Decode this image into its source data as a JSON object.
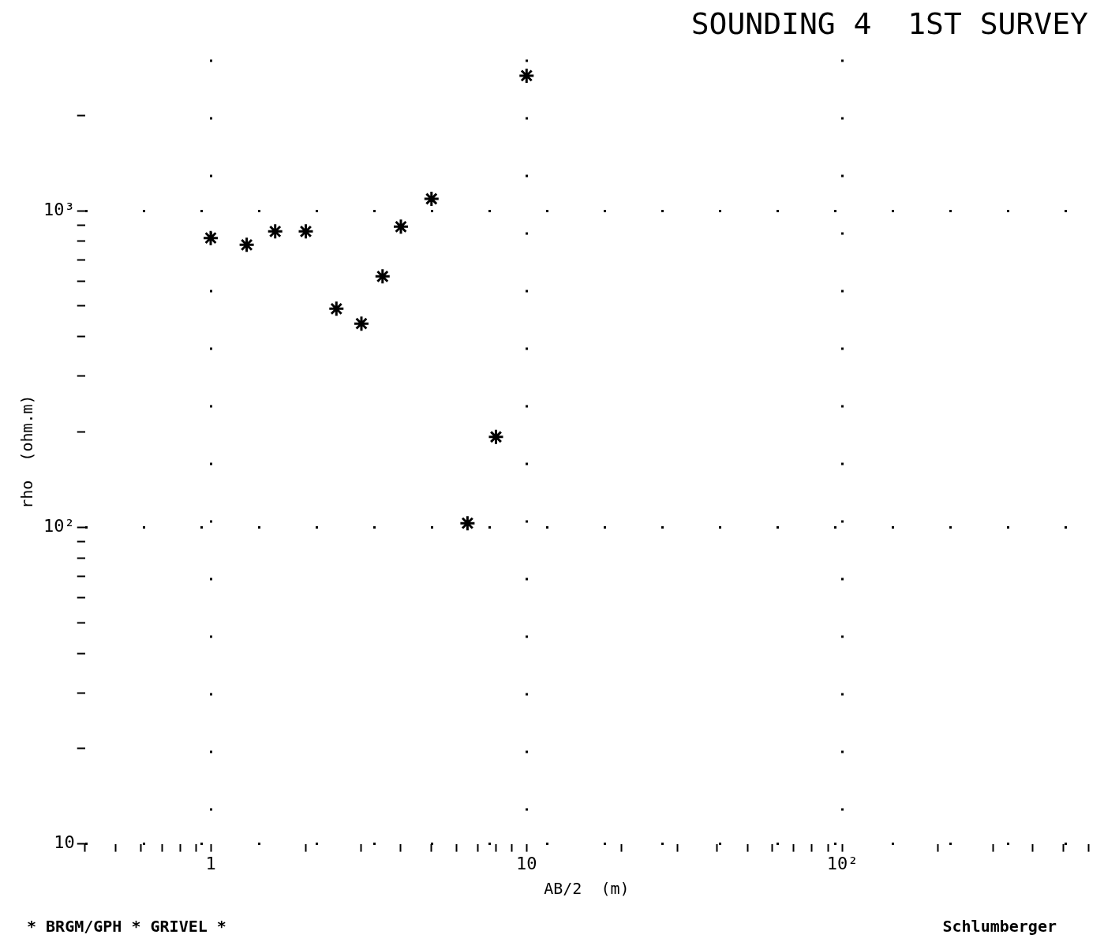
{
  "chart_data": {
    "type": "scatter",
    "title": "SOUNDING 4  1ST SURVEY",
    "xlabel": "AB/2  (m)",
    "ylabel": "rho  (ohm.m)",
    "annotations": [
      "* BRGM/GPH * GRIVEL *",
      "Schlumberger"
    ],
    "log": "xy",
    "grid": true,
    "marker": "cross",
    "legend": false,
    "xlim": [
      0.4,
      600
    ],
    "ylim": [
      10,
      3000
    ],
    "xticks": [
      {
        "value": 0.4,
        "label": null
      },
      {
        "value": 0.5,
        "label": null
      },
      {
        "value": 0.6,
        "label": null
      },
      {
        "value": 0.7,
        "label": null
      },
      {
        "value": 0.8,
        "label": null
      },
      {
        "value": 0.9,
        "label": null
      },
      1,
      {
        "value": 2,
        "label": null
      },
      {
        "value": 3,
        "label": null
      },
      {
        "value": 4,
        "label": null
      },
      {
        "value": 5,
        "label": null
      },
      {
        "value": 6,
        "label": null
      },
      {
        "value": 7,
        "label": null
      },
      {
        "value": 8,
        "label": null
      },
      {
        "value": 9,
        "label": null
      },
      10,
      {
        "value": 20,
        "label": null
      },
      {
        "value": 30,
        "label": null
      },
      {
        "value": 40,
        "label": null
      },
      {
        "value": 50,
        "label": null
      },
      {
        "value": 60,
        "label": null
      },
      {
        "value": 70,
        "label": null
      },
      {
        "value": 80,
        "label": null
      },
      {
        "value": 90,
        "label": null
      },
      {
        "value": 100,
        "label": "10²"
      },
      {
        "value": 200,
        "label": null
      },
      {
        "value": 300,
        "label": null
      },
      {
        "value": 400,
        "label": null
      },
      {
        "value": 500,
        "label": null
      },
      {
        "value": 600,
        "label": null
      }
    ],
    "yticks": [
      10,
      {
        "value": 20,
        "label": null
      },
      {
        "value": 30,
        "label": null
      },
      {
        "value": 40,
        "label": null
      },
      {
        "value": 50,
        "label": null
      },
      {
        "value": 60,
        "label": null
      },
      {
        "value": 70,
        "label": null
      },
      {
        "value": 80,
        "label": null
      },
      {
        "value": 90,
        "label": null
      },
      {
        "value": 100,
        "label": "10²"
      },
      {
        "value": 200,
        "label": null
      },
      {
        "value": 300,
        "label": null
      },
      {
        "value": 400,
        "label": null
      },
      {
        "value": 500,
        "label": null
      },
      {
        "value": 600,
        "label": null
      },
      {
        "value": 700,
        "label": null
      },
      {
        "value": 800,
        "label": null
      },
      {
        "value": 900,
        "label": null
      },
      {
        "value": 1000,
        "label": "10³"
      },
      {
        "value": 2000,
        "label": null
      }
    ],
    "series": [
      {
        "color": "#000000",
        "x": [
          1,
          1.3,
          1.6,
          2,
          2.5,
          3,
          3.5,
          4,
          5,
          6.5,
          8,
          10
        ],
        "values": [
          820,
          780,
          860,
          860,
          490,
          440,
          620,
          890,
          1090,
          103,
          193,
          2670
        ]
      }
    ]
  }
}
